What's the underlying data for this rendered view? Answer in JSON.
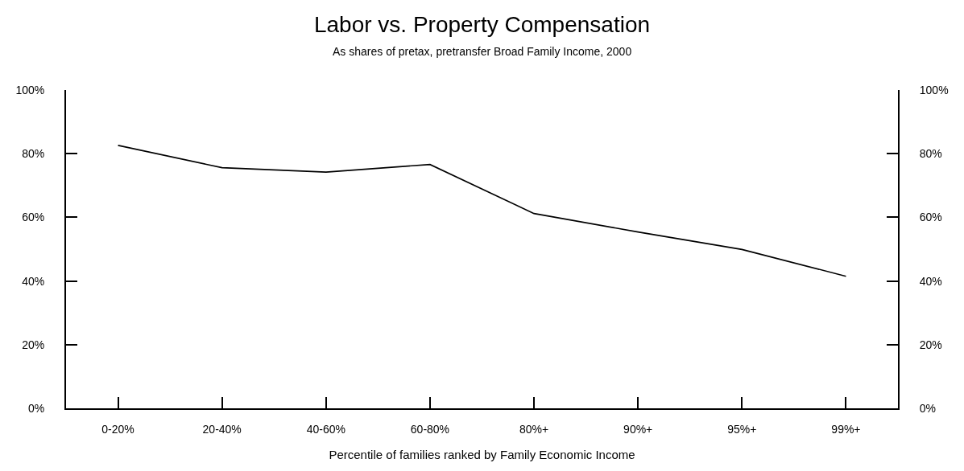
{
  "chart_data": {
    "type": "line",
    "title": "Labor vs. Property Compensation",
    "subtitle": "As shares of pretax, pretransfer Broad Family Income, 2000",
    "xlabel": "Percentile of families ranked by Family Economic Income",
    "categories": [
      "0-20%",
      "20-40%",
      "40-60%",
      "60-80%",
      "80%+",
      "90%+",
      "95%+",
      "99%+"
    ],
    "series": [
      {
        "color": "#000000",
        "values": [
          82.6,
          75.6,
          74.2,
          76.6,
          61.2,
          55.4,
          49.9,
          41.5
        ]
      }
    ],
    "ylim": [
      0,
      100
    ],
    "yticks": [
      {
        "value": 0,
        "label": "0%"
      },
      {
        "value": 20,
        "label": "20%"
      },
      {
        "value": 40,
        "label": "40%"
      },
      {
        "value": 60,
        "label": "60%"
      },
      {
        "value": 80,
        "label": "80%"
      },
      {
        "value": 100,
        "label": "100%"
      }
    ],
    "y2lim": [
      0,
      100
    ],
    "y2ticks": [
      {
        "value": 0,
        "label": "0%"
      },
      {
        "value": 20,
        "label": "20%"
      },
      {
        "value": 40,
        "label": "40%"
      },
      {
        "value": 60,
        "label": "60%"
      },
      {
        "value": 80,
        "label": "80%"
      },
      {
        "value": 100,
        "label": "100%"
      }
    ],
    "marker": "none",
    "line_style": "solid"
  }
}
